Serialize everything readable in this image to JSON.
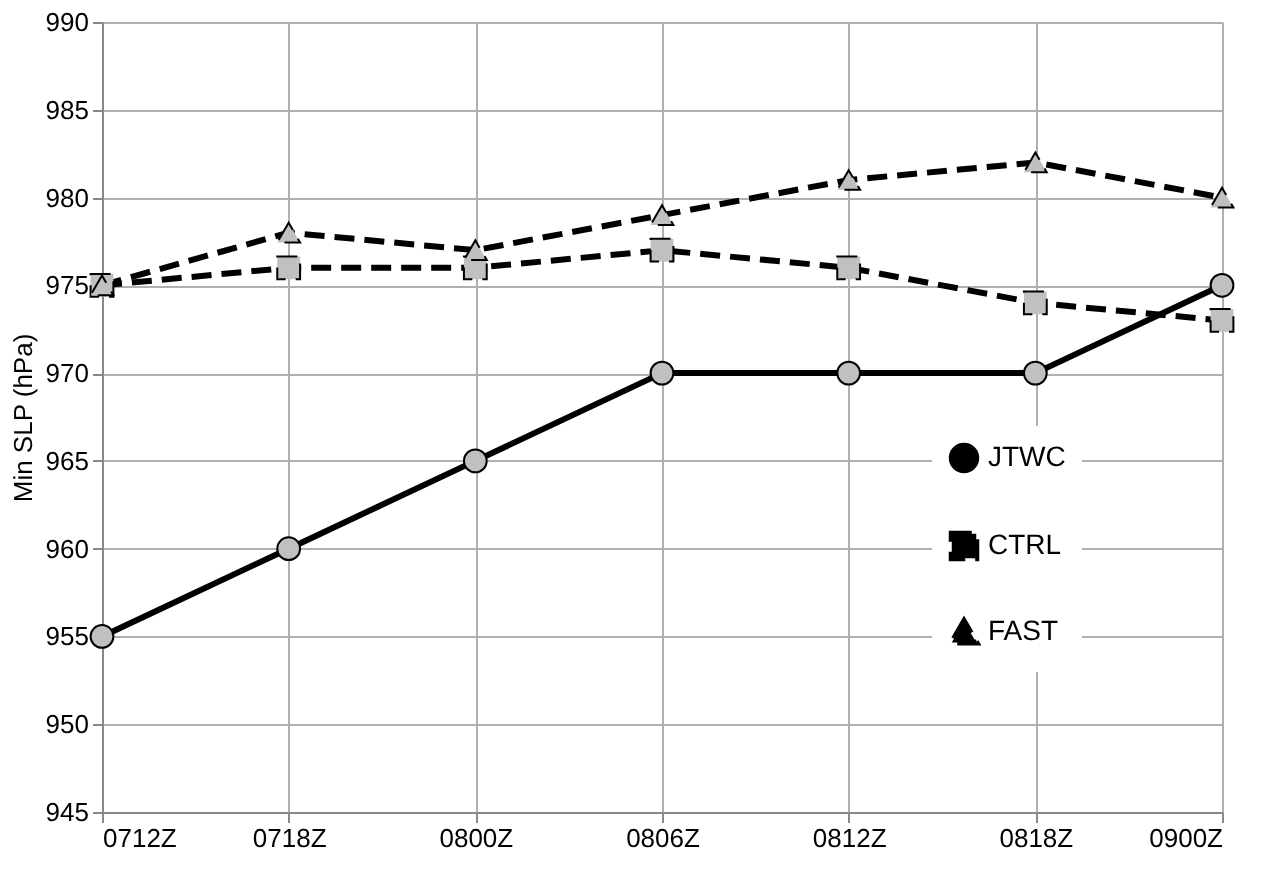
{
  "chart_data": {
    "type": "line",
    "ylabel": "Min SLP (hPa)",
    "categories": [
      "0712Z",
      "0718Z",
      "0800Z",
      "0806Z",
      "0812Z",
      "0818Z",
      "0900Z"
    ],
    "series": [
      {
        "name": "JTWC",
        "color": "#000000",
        "marker": "circle",
        "line_style": "solid",
        "values": [
          955,
          960,
          965,
          970,
          970,
          970,
          975
        ]
      },
      {
        "name": "CTRL",
        "color": "#000000",
        "marker": "square",
        "line_style": "dashed",
        "values": [
          975,
          976,
          976,
          977,
          976,
          974,
          973
        ]
      },
      {
        "name": "FAST",
        "color": "#000000",
        "marker": "triangle",
        "line_style": "dashed",
        "values": [
          975,
          978,
          977,
          979,
          981,
          982,
          980
        ]
      }
    ],
    "ylim": [
      945,
      990
    ],
    "yticks": [
      945,
      950,
      955,
      960,
      965,
      970,
      975,
      980,
      985,
      990
    ],
    "grid": true,
    "legend": "bottom right"
  }
}
